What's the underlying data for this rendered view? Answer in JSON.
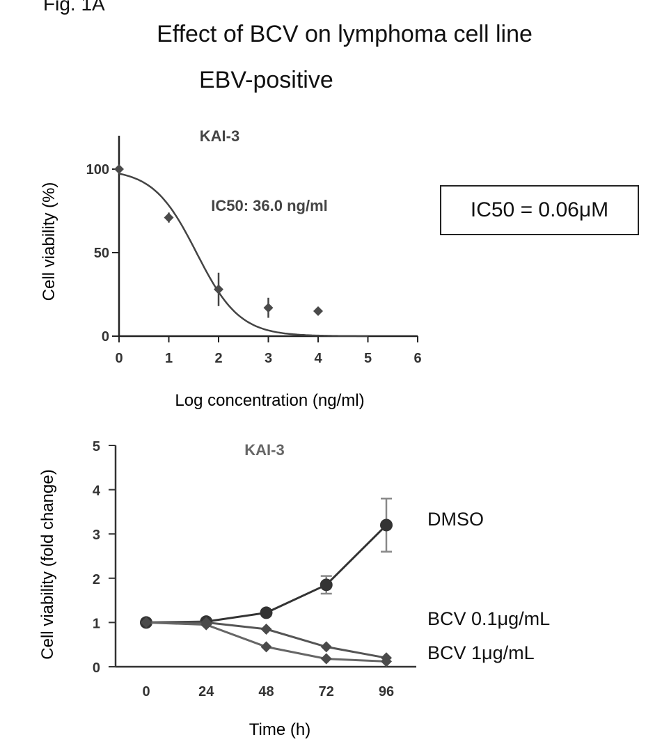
{
  "figure": {
    "label": "Fig. 1A",
    "title": "Effect of BCV on lymphoma cell line",
    "subtitle": "EBV-positive",
    "ic50_box": "IC50 = 0.06μM"
  },
  "chart_data": [
    {
      "type": "scatter",
      "title": "KAI-3",
      "annotation": "IC50: 36.0 ng/ml",
      "xlabel": "Log concentration (ng/ml)",
      "ylabel": "Cell viability (%)",
      "xlim": [
        0,
        6
      ],
      "ylim": [
        0,
        120
      ],
      "xticks": [
        0,
        1,
        2,
        3,
        4,
        5,
        6
      ],
      "yticks": [
        0,
        50,
        100
      ],
      "points": [
        {
          "x": 0,
          "y": 100,
          "err": 0
        },
        {
          "x": 1,
          "y": 71,
          "err": 3
        },
        {
          "x": 2,
          "y": 28,
          "err": 10
        },
        {
          "x": 3,
          "y": 17,
          "err": 6
        },
        {
          "x": 4,
          "y": 15,
          "err": 2
        }
      ],
      "fit": {
        "model": "sigmoid",
        "top": 100,
        "bottom": 0,
        "log_ic50": 1.556,
        "hill": 1.0
      }
    },
    {
      "type": "line",
      "title": "KAI-3",
      "xlabel": "Time (h)",
      "ylabel": "Cell viability (fold change)",
      "categories": [
        "0",
        "24",
        "48",
        "72",
        "96"
      ],
      "ylim": [
        0,
        5
      ],
      "yticks": [
        0,
        1,
        2,
        3,
        4,
        5
      ],
      "series": [
        {
          "name": "DMSO",
          "values": [
            1.0,
            1.02,
            1.22,
            1.85,
            3.2
          ],
          "errors": [
            0,
            0.03,
            0.05,
            0.2,
            0.6
          ],
          "marker": "circle"
        },
        {
          "name": "BCV 0.1μg/mL",
          "values": [
            1.0,
            1.0,
            0.85,
            0.45,
            0.2
          ],
          "errors": [
            0,
            0.03,
            0.04,
            0.05,
            0.04
          ],
          "marker": "diamond"
        },
        {
          "name": "BCV 1μg/mL",
          "values": [
            1.0,
            0.95,
            0.45,
            0.18,
            0.12
          ],
          "errors": [
            0,
            0.03,
            0.05,
            0.04,
            0.03
          ],
          "marker": "diamond"
        }
      ]
    }
  ]
}
